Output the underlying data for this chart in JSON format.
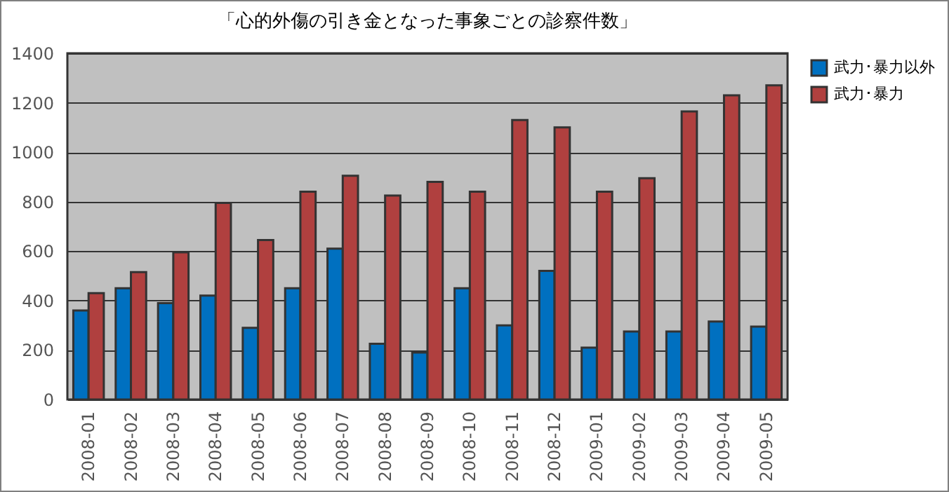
{
  "chart_data": {
    "type": "bar",
    "title": "「心的外傷の引き金となった事象ごとの診察件数」",
    "categories": [
      "2008-01",
      "2008-02",
      "2008-03",
      "2008-04",
      "2008-05",
      "2008-06",
      "2008-07",
      "2008-08",
      "2008-09",
      "2008-10",
      "2008-11",
      "2008-12",
      "2009-01",
      "2009-02",
      "2009-03",
      "2009-04",
      "2009-05"
    ],
    "series": [
      {
        "name": "武力･暴力以外",
        "color": "#0070c0",
        "values": [
          360,
          450,
          390,
          420,
          290,
          450,
          610,
          225,
          190,
          450,
          300,
          520,
          210,
          275,
          275,
          315,
          295
        ]
      },
      {
        "name": "武力･暴力",
        "color": "#b0403f",
        "values": [
          430,
          515,
          595,
          795,
          645,
          840,
          905,
          825,
          880,
          840,
          1130,
          1100,
          840,
          895,
          1165,
          1230,
          1270
        ]
      }
    ],
    "ylim": [
      0,
      1400
    ],
    "yticks": [
      0,
      200,
      400,
      600,
      800,
      1000,
      1200,
      1400
    ],
    "grid": "y",
    "legend": "right"
  }
}
